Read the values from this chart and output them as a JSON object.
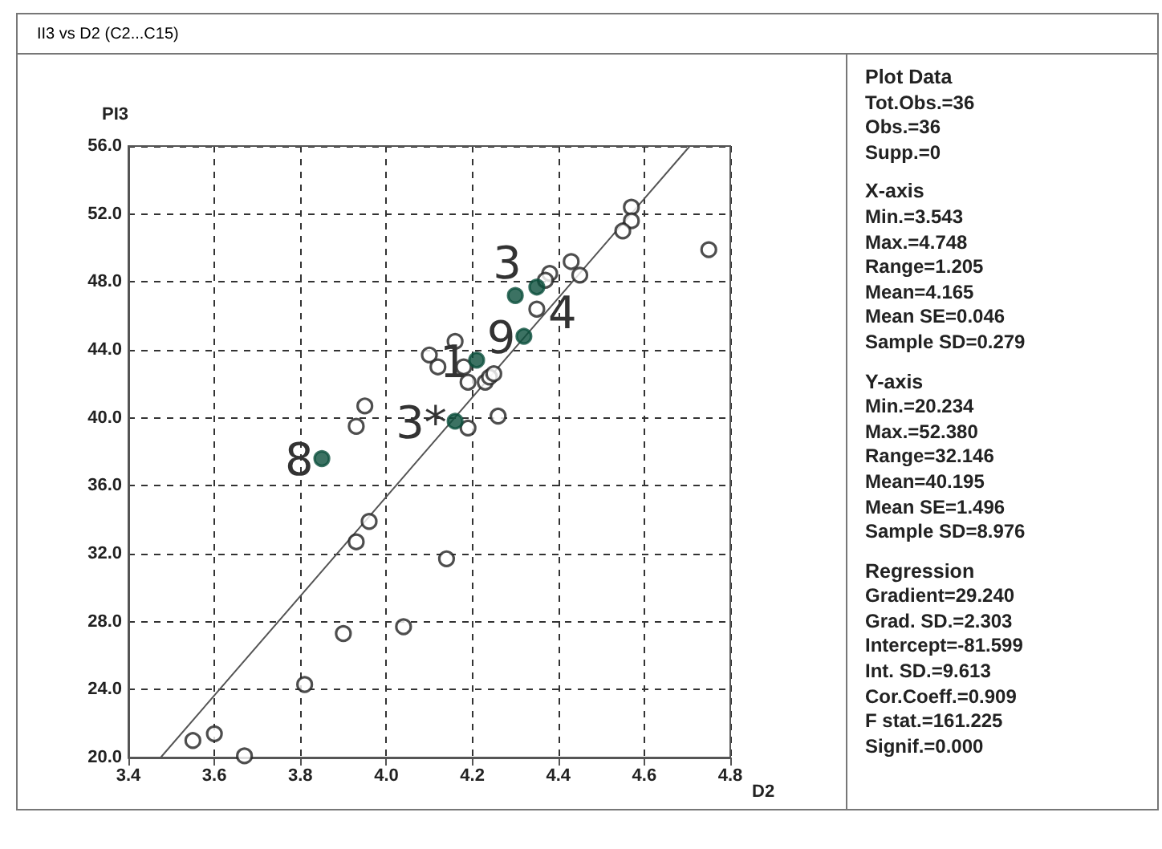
{
  "chart_data": {
    "type": "scatter",
    "title": "II3 vs D2 (C2...C15)",
    "xlabel": "D2",
    "ylabel": "PI3",
    "xlim": [
      3.4,
      4.8
    ],
    "ylim": [
      20,
      56
    ],
    "xticks": [
      {
        "value": 3.4,
        "label": "3.4"
      },
      {
        "value": 3.6,
        "label": "3.6"
      },
      {
        "value": 3.8,
        "label": "3.8"
      },
      {
        "value": 4.0,
        "label": "4.0"
      },
      {
        "value": 4.2,
        "label": "4.2"
      },
      {
        "value": 4.4,
        "label": "4.4"
      },
      {
        "value": 4.6,
        "label": "4.6"
      },
      {
        "value": 4.8,
        "label": "4.8"
      }
    ],
    "yticks": [
      {
        "value": 20,
        "label": "20.0"
      },
      {
        "value": 24,
        "label": "24.0"
      },
      {
        "value": 28,
        "label": "28.0"
      },
      {
        "value": 32,
        "label": "32.0"
      },
      {
        "value": 36,
        "label": "36.0"
      },
      {
        "value": 40,
        "label": "40.0"
      },
      {
        "value": 44,
        "label": "44.0"
      },
      {
        "value": 48,
        "label": "48.0"
      },
      {
        "value": 52,
        "label": "52.0"
      },
      {
        "value": 56,
        "label": "56.0"
      }
    ],
    "grid": true,
    "marker": "circle",
    "series": [
      {
        "color": "#222222",
        "x": [
          4.57,
          4.57,
          4.55,
          4.75,
          4.43,
          4.45,
          4.38,
          4.37,
          4.35,
          4.16,
          4.1,
          4.12,
          4.18,
          4.19,
          4.23,
          4.24,
          4.25,
          3.95,
          3.93,
          4.19,
          4.26,
          3.96,
          3.93,
          4.14,
          3.9,
          4.04,
          3.81,
          3.55,
          3.6,
          3.67
        ],
        "values": [
          52.4,
          51.6,
          51.0,
          49.9,
          49.2,
          48.4,
          48.5,
          48.1,
          46.4,
          44.5,
          43.7,
          43.0,
          43.0,
          42.1,
          42.1,
          42.4,
          42.6,
          40.7,
          39.5,
          39.4,
          40.1,
          33.9,
          32.7,
          31.7,
          27.3,
          27.7,
          24.3,
          21.0,
          21.4,
          20.1
        ]
      },
      {
        "color": "#0b4f3c",
        "x": [
          3.85,
          4.16,
          4.21,
          4.32,
          4.3,
          4.35
        ],
        "values": [
          37.6,
          39.8,
          43.4,
          44.8,
          47.2,
          47.7
        ]
      },
      {
        "type": "line",
        "color": "#555555",
        "marker": "none",
        "x": [
          3.475,
          4.706
        ],
        "values": [
          20,
          56
        ]
      }
    ],
    "annotations": [
      {
        "text": "8",
        "x": 3.85,
        "y": 37.6
      },
      {
        "text": "3*",
        "x": 4.16,
        "y": 39.8
      },
      {
        "text": "1",
        "x": 4.21,
        "y": 43.4
      },
      {
        "text": "9",
        "x": 4.32,
        "y": 44.8
      },
      {
        "text": "3",
        "x": 4.3,
        "y": 47.2
      },
      {
        "text": "4",
        "x": 4.35,
        "y": 47.7
      },
      "Plot Data\nTot.Obs.=36\nObs.=36\nSupp.=0",
      "X-axis\nMin.=3.543\nMax.=4.748\nRange=1.205\nMean=4.165\nMean SE=0.046\nSample SD=0.279",
      "Y-axis\nMin.=20.234\nMax.=52.380\nRange=32.146\nMean=40.195\nMean SE=1.496\nSample SD=8.976",
      "Regression\nGradient=29.240\nGrad. SD.=2.303\nIntercept=-81.599\nInt. SD.=9.613\nCor.Coeff.=0.909\nF stat.=161.225\nSignif.=0.000"
    ]
  }
}
